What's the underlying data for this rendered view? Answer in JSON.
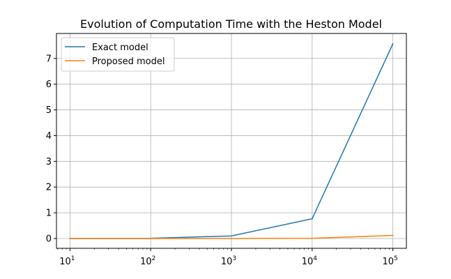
{
  "chart_data": {
    "type": "line",
    "title": "Evolution of Computation Time with the Heston Model",
    "xlabel": "",
    "ylabel": "",
    "xscale": "log",
    "x": [
      10,
      100,
      1000,
      10000,
      100000
    ],
    "xlim": [
      6.8,
      147000
    ],
    "ylim": [
      -0.38,
      7.97
    ],
    "grid": true,
    "legend_position": "top-left",
    "x_ticks": [
      {
        "value": 10,
        "base": "10",
        "exp": "1"
      },
      {
        "value": 100,
        "base": "10",
        "exp": "2"
      },
      {
        "value": 1000,
        "base": "10",
        "exp": "3"
      },
      {
        "value": 10000,
        "base": "10",
        "exp": "4"
      },
      {
        "value": 100000,
        "base": "10",
        "exp": "5"
      }
    ],
    "y_ticks": [
      "0",
      "1",
      "2",
      "3",
      "4",
      "5",
      "6",
      "7"
    ],
    "series": [
      {
        "name": "Exact model",
        "color": "#1f77b4",
        "values": [
          0.001,
          0.01,
          0.1,
          0.77,
          7.57
        ]
      },
      {
        "name": "Proposed model",
        "color": "#ff7f0e",
        "values": [
          0.0,
          0.001,
          0.003,
          0.01,
          0.12
        ]
      }
    ]
  }
}
